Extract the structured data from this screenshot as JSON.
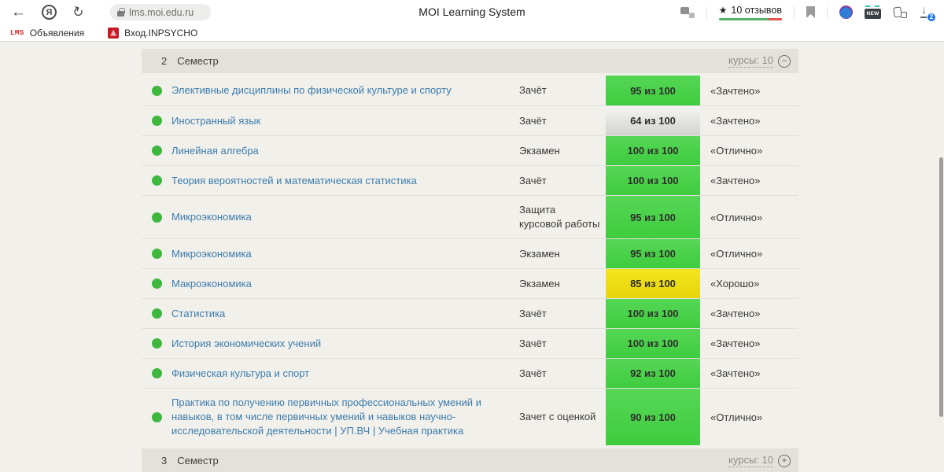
{
  "browser": {
    "back_icon": "←",
    "yandex_icon_letter": "Я",
    "refresh_icon": "↻",
    "url": "lms.moi.edu.ru",
    "page_title": "MOI Learning System",
    "rating_star": "★",
    "rating_text": "10 отзывов",
    "new_badge": "NEW",
    "download_count": "2"
  },
  "bookmarks_bar": {
    "items": [
      {
        "favicon_text": "LMS",
        "label": "Объявления"
      },
      {
        "label": "Вход.INPSYCHO"
      }
    ]
  },
  "table": {
    "semester_2": {
      "number": "2",
      "title": "Семестр",
      "courses_label": "курсы: 10",
      "toggle_icon": "−"
    },
    "rows": [
      {
        "name": "Элективные дисциплины по физической культуре и спорту",
        "type": "Зачёт",
        "score": "95 из 100",
        "score_color": "green",
        "grade": "«Зачтено»"
      },
      {
        "name": "Иностранный язык",
        "type": "Зачёт",
        "score": "64 из 100",
        "score_color": "gray",
        "grade": "«Зачтено»"
      },
      {
        "name": "Линейная алгебра",
        "type": "Экзамен",
        "score": "100 из 100",
        "score_color": "green",
        "grade": "«Отлично»"
      },
      {
        "name": "Теория вероятностей и математическая статистика",
        "type": "Зачёт",
        "score": "100 из 100",
        "score_color": "green",
        "grade": "«Зачтено»"
      },
      {
        "name": "Микроэкономика",
        "type": "Защита курсовой работы",
        "score": "95 из 100",
        "score_color": "green",
        "grade": "«Отлично»"
      },
      {
        "name": "Микроэкономика",
        "type": "Экзамен",
        "score": "95 из 100",
        "score_color": "green",
        "grade": "«Отлично»"
      },
      {
        "name": "Макроэкономика",
        "type": "Экзамен",
        "score": "85 из 100",
        "score_color": "yellow",
        "grade": "«Хорошо»"
      },
      {
        "name": "Статистика",
        "type": "Зачёт",
        "score": "100 из 100",
        "score_color": "green",
        "grade": "«Зачтено»"
      },
      {
        "name": "История экономических учений",
        "type": "Зачёт",
        "score": "100 из 100",
        "score_color": "green",
        "grade": "«Зачтено»"
      },
      {
        "name": "Физическая культура и спорт",
        "type": "Зачёт",
        "score": "92 из 100",
        "score_color": "green",
        "grade": "«Зачтено»"
      },
      {
        "name": "Практика по получению первичных профессиональных умений и навыков, в том числе первичных умений и навыков научно-исследовательской деятельности | УП.ВЧ | Учебная практика",
        "type": "Зачет с оценкой",
        "score": "90 из 100",
        "score_color": "green",
        "grade": "«Отлично»"
      }
    ],
    "semester_3": {
      "number": "3",
      "title": "Семестр",
      "courses_label": "курсы: 10",
      "toggle_icon": "+"
    }
  },
  "colors": {
    "link_blue": "#3d7cac",
    "status_dot_green": "#3fb73f",
    "badge_green_top": "#56d756",
    "badge_green_bottom": "#3ecc3e",
    "badge_gray_top": "#f5f5f4",
    "badge_gray_bottom": "#d2d2cf",
    "badge_yellow_top": "#f2e51e",
    "badge_yellow_bottom": "#e8d50a",
    "semester_header_bg": "#e2e1da",
    "page_bg": "#f1f0eb",
    "rating_bar_green": "#56b36a",
    "rating_bar_red": "#df5450",
    "download_badge_blue": "#2576e8"
  }
}
